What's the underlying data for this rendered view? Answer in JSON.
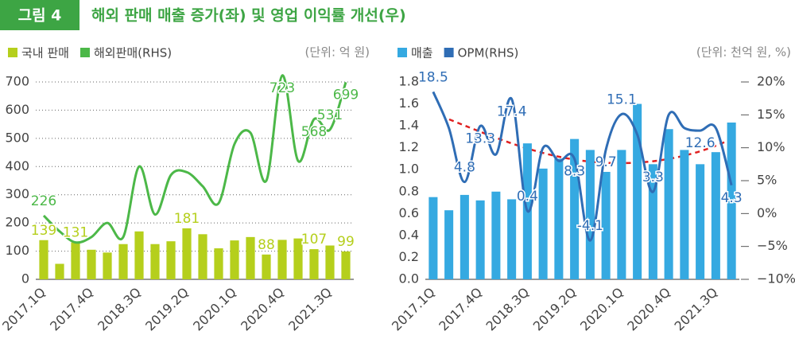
{
  "header": {
    "label": "그림 4",
    "title": "해외 판매 매출 증가(좌) 및 영업 이익률 개선(우)"
  },
  "chart_data": [
    {
      "type": "combo",
      "unit": "(단위: 억 원)",
      "categories": [
        "2017.1Q",
        null,
        null,
        "2017.4Q",
        null,
        null,
        "2018.3Q",
        null,
        null,
        "2019.2Q",
        null,
        null,
        "2020.1Q",
        null,
        null,
        "2020.4Q",
        null,
        null,
        "2021.3Q",
        null
      ],
      "ylim": [
        0,
        700
      ],
      "yticks": [
        0,
        100,
        200,
        300,
        400,
        500,
        600,
        700
      ],
      "grid": true,
      "series": [
        {
          "name": "국내 판매",
          "type": "bar",
          "color": "#b5cf1c",
          "values": [
            139,
            55,
            131,
            105,
            95,
            125,
            170,
            125,
            135,
            181,
            160,
            110,
            138,
            150,
            88,
            140,
            145,
            107,
            120,
            99
          ],
          "value_labels": [
            "139",
            null,
            "131",
            null,
            null,
            null,
            null,
            null,
            null,
            "181",
            null,
            null,
            null,
            null,
            "88",
            null,
            null,
            "107",
            null,
            "99"
          ]
        },
        {
          "name": "해외판매(RHS)",
          "type": "line",
          "color": "#4cb848",
          "values": [
            226,
            170,
            131,
            150,
            200,
            150,
            400,
            230,
            370,
            380,
            330,
            270,
            480,
            520,
            350,
            723,
            420,
            568,
            531,
            699
          ],
          "value_labels": [
            "226",
            null,
            null,
            null,
            null,
            null,
            null,
            null,
            null,
            null,
            null,
            null,
            null,
            null,
            null,
            "723",
            null,
            "568",
            "531",
            "699"
          ]
        }
      ]
    },
    {
      "type": "combo",
      "unit": "(단위: 천억 원, %)",
      "categories": [
        "2017.1Q",
        null,
        null,
        "2017.4Q",
        null,
        null,
        "2018.3Q",
        null,
        null,
        "2019.2Q",
        null,
        null,
        "2020.1Q",
        null,
        null,
        "2020.4Q",
        null,
        null,
        "2021.3Q",
        null
      ],
      "ylim": [
        0,
        1.8
      ],
      "yticks": [
        {
          "value": 0,
          "label": "0.0"
        },
        0.2,
        0.4,
        0.6,
        0.8,
        {
          "value": 1,
          "label": "1.0"
        },
        1.2,
        1.4,
        1.6,
        1.8
      ],
      "y2lim": [
        -10,
        20
      ],
      "y2ticks": [
        {
          "value": -10,
          "label": "−10%"
        },
        {
          "value": -5,
          "label": "−5%"
        },
        {
          "value": 0,
          "label": "0%"
        },
        {
          "value": 5,
          "label": "5%"
        },
        {
          "value": 10,
          "label": "10%"
        },
        {
          "value": 15,
          "label": "15%"
        },
        {
          "value": 20,
          "label": "20%"
        }
      ],
      "series": [
        {
          "name": "매출",
          "type": "bar",
          "color": "#35a9e1",
          "values": [
            0.75,
            0.63,
            0.77,
            0.72,
            0.8,
            0.73,
            1.24,
            1.01,
            1.1,
            1.28,
            1.18,
            0.98,
            1.18,
            1.6,
            1.05,
            1.37,
            1.18,
            1.05,
            1.16,
            1.43
          ]
        },
        {
          "name": "OPM(RHS)",
          "type": "line",
          "axis": "y2",
          "color": "#2f6db5",
          "values": [
            18.5,
            13,
            4.8,
            13.3,
            9,
            17.4,
            0.4,
            10,
            8,
            8.3,
            -4.1,
            9.7,
            15.1,
            12,
            3.3,
            15,
            13,
            12.6,
            13,
            4.3
          ],
          "value_labels": [
            "18.5",
            null,
            "4.8",
            "13.3",
            null,
            "17.4",
            "0.4",
            null,
            null,
            "8.3",
            "-4.1",
            "9.7",
            "15.1",
            null,
            "3.3",
            null,
            null,
            "12.6",
            null,
            "4.3"
          ]
        }
      ]
    }
  ]
}
